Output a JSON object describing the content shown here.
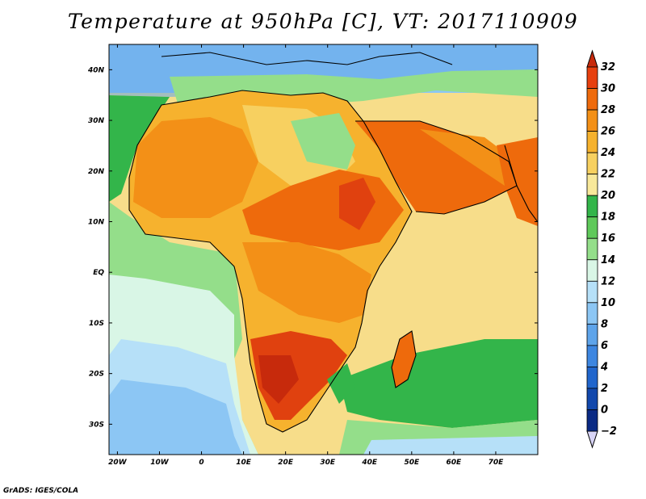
{
  "title": "Temperature at 950hPa [C], VT: 2017110909",
  "credit": "GrADS: IGES/COLA",
  "map": {
    "region": "Africa and Arabian Peninsula",
    "lat_labels": [
      "40N",
      "30N",
      "20N",
      "10N",
      "EQ",
      "10S",
      "20S",
      "30S"
    ],
    "lat_values": [
      40,
      30,
      20,
      10,
      0,
      -10,
      -20,
      -30
    ],
    "lon_labels": [
      "20W",
      "10W",
      "0",
      "10E",
      "20E",
      "30E",
      "40E",
      "50E",
      "60E",
      "70E"
    ],
    "lon_values": [
      -20,
      -10,
      0,
      10,
      20,
      30,
      40,
      50,
      60,
      70
    ],
    "lon_range": [
      -22,
      80
    ],
    "lat_range": [
      -36,
      45
    ]
  },
  "colorbar": {
    "levels": [
      "32",
      "30",
      "28",
      "26",
      "24",
      "22",
      "20",
      "18",
      "16",
      "14",
      "12",
      "10",
      "8",
      "6",
      "4",
      "2",
      "0",
      "−2"
    ],
    "colors": [
      "#c72a0c",
      "#e7400f",
      "#ee6a0c",
      "#f39017",
      "#f6b22e",
      "#f7d060",
      "#f8e89a",
      "#33b54a",
      "#5fc95a",
      "#94de8a",
      "#d9f6e6",
      "#b6e0f8",
      "#8cc6f4",
      "#5ea4ea",
      "#3d86e0",
      "#2166cc",
      "#1248ac",
      "#0a2a84"
    ],
    "top_color": "#c72a0c",
    "bottom_color": "#d8d4f6"
  },
  "palette": {
    "sea_cool": "#8cc6f4",
    "sea_mid": "#b6e0f8",
    "sea_warm": "#f7dd8a",
    "land_hot": "#e0410f",
    "land_warm": "#f39017",
    "land_mild": "#f6b22e",
    "land_green": "#33b54a",
    "land_lightgreen": "#94de8a"
  }
}
